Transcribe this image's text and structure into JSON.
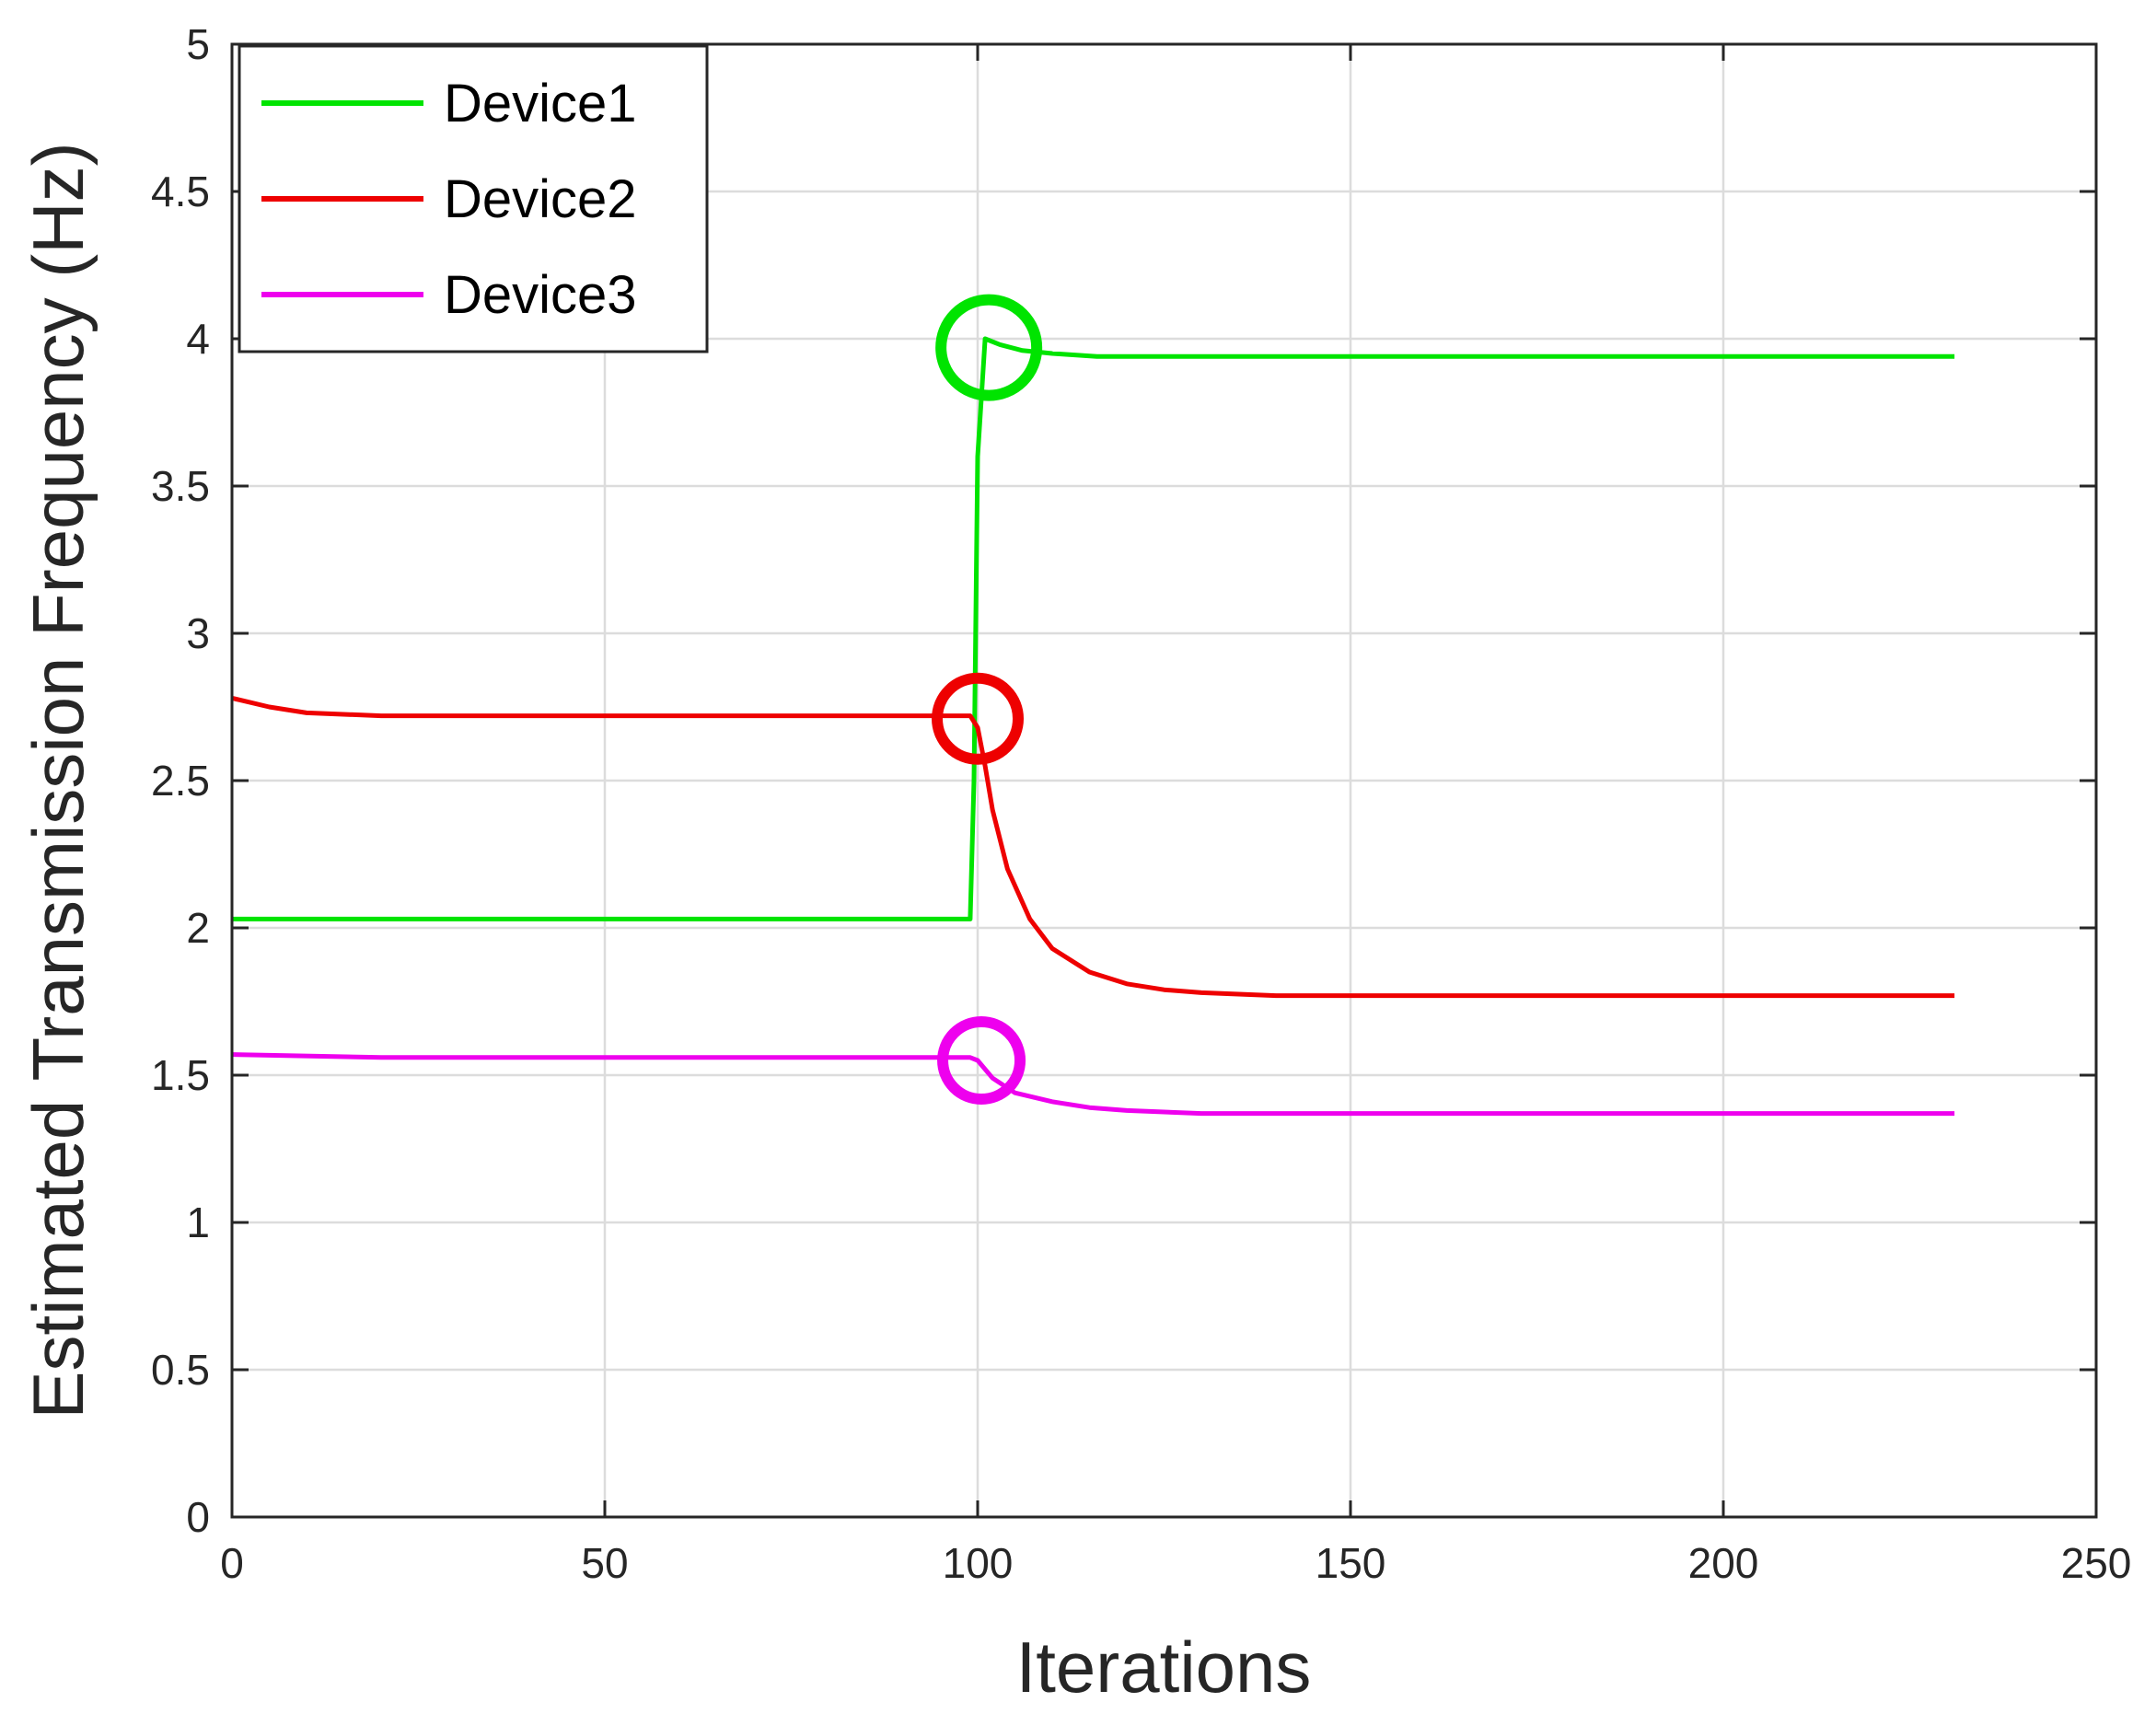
{
  "chart_data": {
    "type": "line",
    "xlabel": "Iterations",
    "ylabel": "Estimated Transmission Frequency (Hz)",
    "xlim": [
      0,
      250
    ],
    "ylim": [
      0,
      5
    ],
    "xticks": [
      0,
      50,
      100,
      150,
      200,
      250
    ],
    "yticks": [
      0,
      0.5,
      1,
      1.5,
      2,
      2.5,
      3,
      3.5,
      4,
      4.5,
      5
    ],
    "xtick_labels": [
      "0",
      "50",
      "100",
      "150",
      "200",
      "250"
    ],
    "ytick_labels": [
      "0",
      "0.5",
      "1",
      "1.5",
      "2",
      "2.5",
      "3",
      "3.5",
      "4",
      "4.5",
      "5"
    ],
    "grid": true,
    "legend_position": "top-left",
    "series": [
      {
        "name": "Device1",
        "color": "#00e400",
        "x": [
          0,
          99,
          99.5,
          100,
          101,
          103,
          106,
          110,
          116,
          125,
          140,
          231
        ],
        "y": [
          2.03,
          2.03,
          2.5,
          3.6,
          4.0,
          3.98,
          3.96,
          3.95,
          3.94,
          3.94,
          3.94,
          3.94
        ],
        "marker_circle": {
          "x": 101.5,
          "y": 3.97
        }
      },
      {
        "name": "Device2",
        "color": "#ee0000",
        "x": [
          0,
          5,
          10,
          20,
          30,
          50,
          99,
          100,
          101,
          102,
          104,
          107,
          110,
          115,
          120,
          125,
          130,
          140,
          160,
          231
        ],
        "y": [
          2.78,
          2.75,
          2.73,
          2.72,
          2.72,
          2.72,
          2.72,
          2.68,
          2.55,
          2.4,
          2.2,
          2.03,
          1.93,
          1.85,
          1.81,
          1.79,
          1.78,
          1.77,
          1.77,
          1.77
        ],
        "marker_circle": {
          "x": 100,
          "y": 2.71
        }
      },
      {
        "name": "Device3",
        "color": "#ee00ee",
        "x": [
          0,
          20,
          50,
          99,
          100,
          102,
          105,
          110,
          115,
          120,
          130,
          150,
          231
        ],
        "y": [
          1.57,
          1.56,
          1.56,
          1.56,
          1.55,
          1.49,
          1.44,
          1.41,
          1.39,
          1.38,
          1.37,
          1.37,
          1.37
        ],
        "marker_circle": {
          "x": 100.5,
          "y": 1.55
        }
      }
    ]
  }
}
